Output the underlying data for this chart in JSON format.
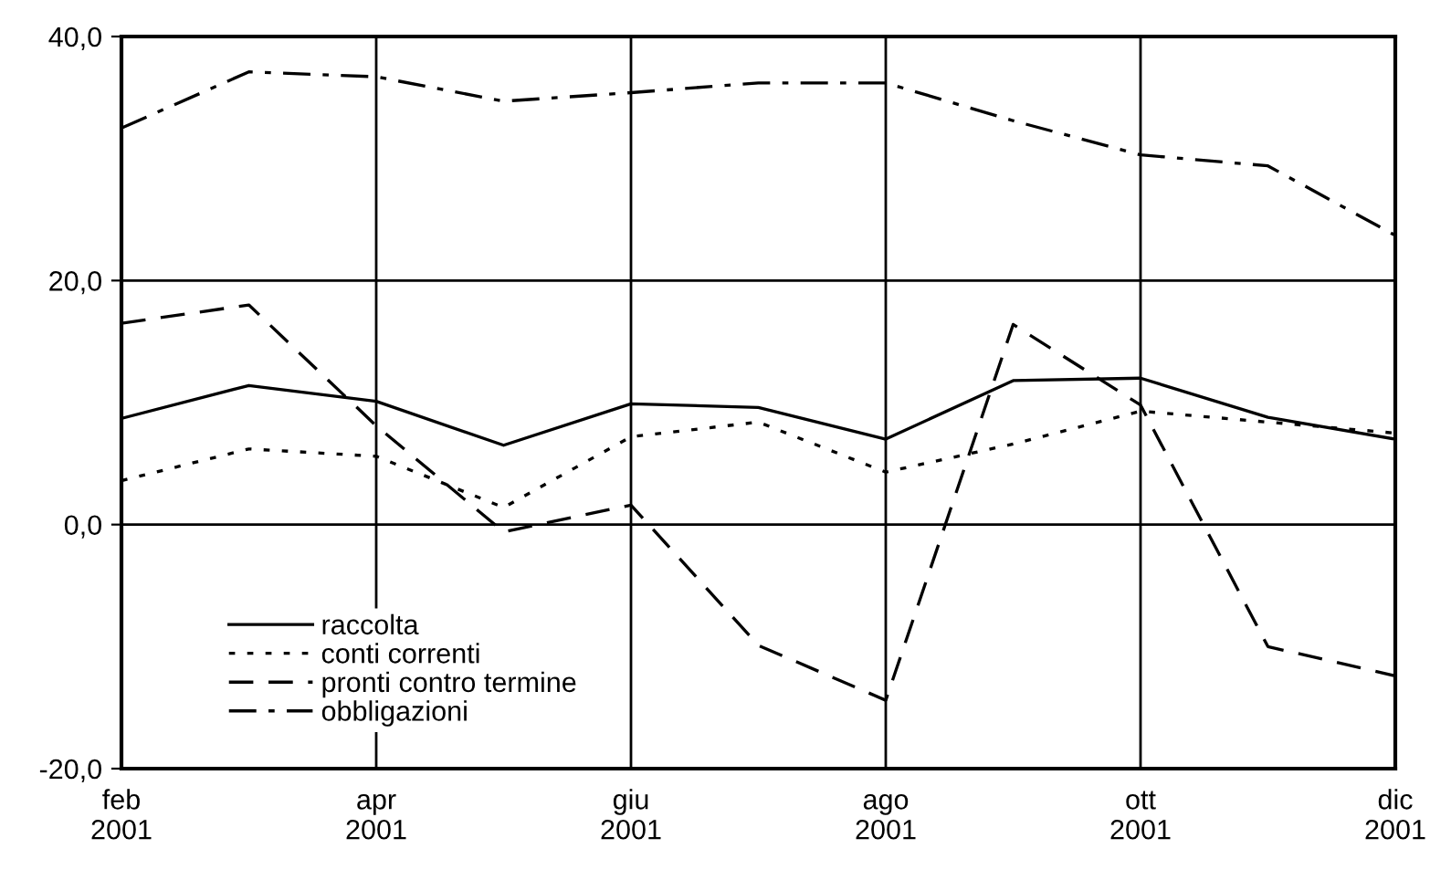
{
  "chart_data": {
    "type": "line",
    "categories": [
      "feb\n2001",
      null,
      "apr\n2001",
      null,
      "giu\n2001",
      null,
      "ago\n2001",
      null,
      "ott\n2001",
      null,
      "dic\n2001"
    ],
    "series": [
      {
        "name": "raccolta",
        "color": "#000000",
        "line_style": "solid",
        "values": [
          8.7,
          11.4,
          10.1,
          6.5,
          9.9,
          9.6,
          7.0,
          11.8,
          12.0,
          8.8,
          7.0
        ]
      },
      {
        "name": "conti correnti",
        "color": "#000000",
        "line_style": "dotted",
        "values": [
          3.6,
          6.2,
          5.6,
          1.4,
          7.2,
          8.4,
          4.3,
          6.6,
          9.3,
          8.4,
          7.5
        ]
      },
      {
        "name": "pronti contro termine",
        "color": "#000000",
        "line_style": "dashed",
        "values": [
          16.5,
          18.0,
          8.1,
          -0.6,
          1.6,
          -9.9,
          -14.4,
          16.4,
          9.8,
          -10.0,
          -12.4
        ]
      },
      {
        "name": "obbligazioni",
        "color": "#000000",
        "line_style": "dashdot",
        "values": [
          32.5,
          37.1,
          36.7,
          34.7,
          35.4,
          36.2,
          36.2,
          33.1,
          30.3,
          29.4,
          23.7
        ]
      }
    ],
    "ylim": [
      -20,
      40
    ],
    "yticks": [
      {
        "value": -20,
        "label": "-20,0"
      },
      {
        "value": 0,
        "label": "0,0"
      },
      {
        "value": 20,
        "label": "20,0"
      },
      {
        "value": 40,
        "label": "40,0"
      }
    ],
    "grid": true,
    "legend": "bottom left",
    "marker": "none"
  }
}
